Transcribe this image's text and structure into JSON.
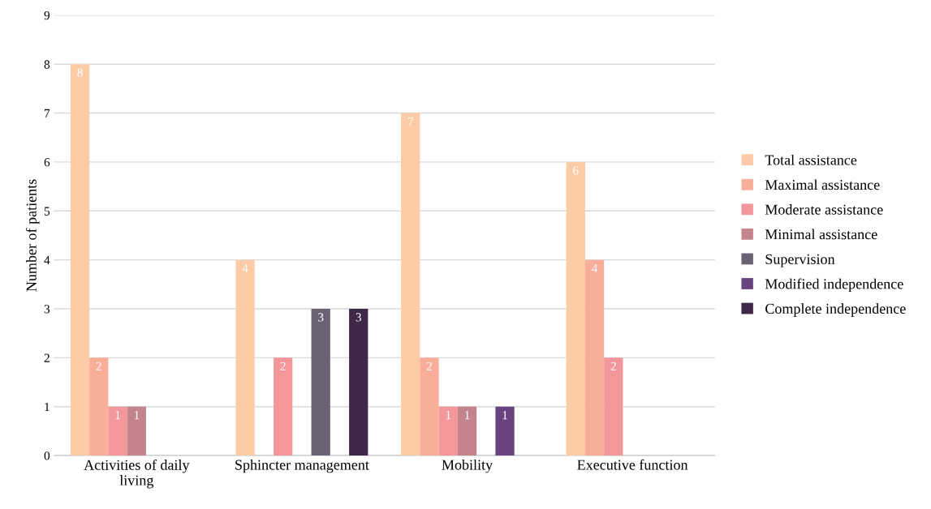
{
  "chart_data": {
    "type": "bar",
    "ylabel": "Number of patients",
    "categories": [
      "Activities of daily living",
      "Sphincter management",
      "Mobility",
      "Executive function"
    ],
    "series": [
      {
        "name": "Total assistance",
        "color": "#fdcba6",
        "values": [
          8,
          4,
          7,
          6
        ]
      },
      {
        "name": "Maximal assistance",
        "color": "#f9ae9a",
        "values": [
          2,
          null,
          2,
          4
        ]
      },
      {
        "name": "Moderate assistance",
        "color": "#f4979b",
        "values": [
          1,
          2,
          1,
          2
        ]
      },
      {
        "name": "Minimal assistance",
        "color": "#c4848b",
        "values": [
          1,
          null,
          1,
          null
        ]
      },
      {
        "name": "Supervision",
        "color": "#6b6274",
        "values": [
          null,
          3,
          null,
          null
        ]
      },
      {
        "name": "Modified independence",
        "color": "#694380",
        "values": [
          null,
          null,
          1,
          null
        ]
      },
      {
        "name": "Complete independence",
        "color": "#3e2a48",
        "values": [
          null,
          3,
          null,
          null
        ]
      }
    ],
    "ylim": [
      0,
      9
    ],
    "yticks": [
      0,
      1,
      2,
      3,
      4,
      5,
      6,
      7,
      8,
      9
    ],
    "grid": "y",
    "legend": "right",
    "data_labels": true
  }
}
